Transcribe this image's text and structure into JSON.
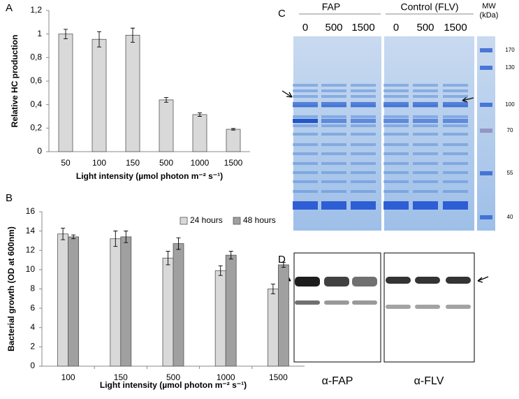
{
  "chart_data": [
    {
      "type": "bar",
      "panel_label": "A",
      "ylabel": "Relative HC production",
      "xlabel": "Light intensity (µmol photon m⁻² s⁻¹)",
      "categories": [
        "50",
        "100",
        "150",
        "500",
        "1000",
        "1500"
      ],
      "values": [
        1.0,
        0.955,
        0.99,
        0.44,
        0.315,
        0.19
      ],
      "errors": [
        0.04,
        0.065,
        0.06,
        0.02,
        0.015,
        0.007
      ],
      "color": "#d9d9d9",
      "ylim": [
        0,
        1.2
      ],
      "yticks": [
        0,
        {
          "value": 0.2,
          "label": "0,2"
        },
        {
          "value": 0.4,
          "label": "0,4"
        },
        {
          "value": 0.6,
          "label": "0,6"
        },
        {
          "value": 0.8,
          "label": "0,8"
        },
        1,
        {
          "value": 1.2,
          "label": "1,2"
        }
      ]
    },
    {
      "type": "bar",
      "panel_label": "B",
      "ylabel": "Bacterial growth (OD at 600nm)",
      "xlabel": "Light intensity (µmol photon m⁻² s⁻¹)",
      "categories": [
        "100",
        "150",
        "500",
        "1000",
        "1500"
      ],
      "series": [
        {
          "name": "24 hours",
          "color": "#d9d9d9",
          "values": [
            13.7,
            13.2,
            11.2,
            9.9,
            8.0
          ],
          "errors": [
            0.6,
            0.8,
            0.7,
            0.5,
            0.5
          ]
        },
        {
          "name": "48 hours",
          "color": "#a0a0a0",
          "values": [
            13.4,
            13.4,
            12.7,
            11.5,
            10.5
          ],
          "errors": [
            0.2,
            0.6,
            0.6,
            0.4,
            0.25
          ]
        }
      ],
      "ylim": [
        0,
        16
      ],
      "yticks": [
        0,
        2,
        4,
        6,
        8,
        10,
        12,
        14,
        16
      ]
    }
  ],
  "gel_c": {
    "label": "C",
    "groups": [
      "FAP",
      "Control (FLV)"
    ],
    "lanes": [
      "0",
      "500",
      "1500",
      "0",
      "500",
      "1500"
    ],
    "marker_title": [
      "MW",
      "(kDa)"
    ],
    "markers": [
      170,
      130,
      100,
      70,
      55,
      40
    ]
  },
  "blot_d": {
    "label": "D",
    "antibodies": [
      "α-FAP",
      "α-FLV"
    ]
  }
}
